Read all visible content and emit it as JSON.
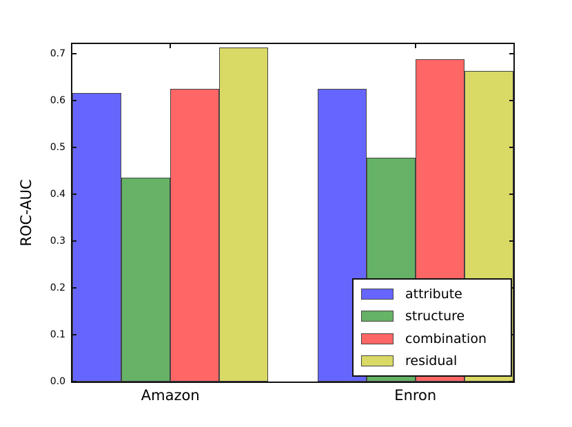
{
  "chart_data": {
    "type": "bar",
    "title": "",
    "xlabel": "",
    "ylabel": "ROC-AUC",
    "categories": [
      "Amazon",
      "Enron"
    ],
    "series": [
      {
        "name": "attribute",
        "color": "#6666ff",
        "values": [
          0.615,
          0.625
        ]
      },
      {
        "name": "structure",
        "color": "#66b266",
        "values": [
          0.435,
          0.478
        ]
      },
      {
        "name": "combination",
        "color": "#ff6666",
        "values": [
          0.625,
          0.687
        ]
      },
      {
        "name": "residual",
        "color": "#d9d966",
        "values": [
          0.712,
          0.662
        ]
      }
    ],
    "ylim": [
      0.0,
      0.72
    ],
    "yticks": [
      0.0,
      0.1,
      0.2,
      0.3,
      0.4,
      0.5,
      0.6,
      0.7
    ],
    "ytick_labels": [
      "0.0",
      "0.1",
      "0.2",
      "0.3",
      "0.4",
      "0.5",
      "0.6",
      "0.7"
    ],
    "legend_position": "lower right",
    "grid": false,
    "bar_edge_color": "#444444",
    "axis_color": "#111111",
    "background_color": "#ffffff"
  }
}
